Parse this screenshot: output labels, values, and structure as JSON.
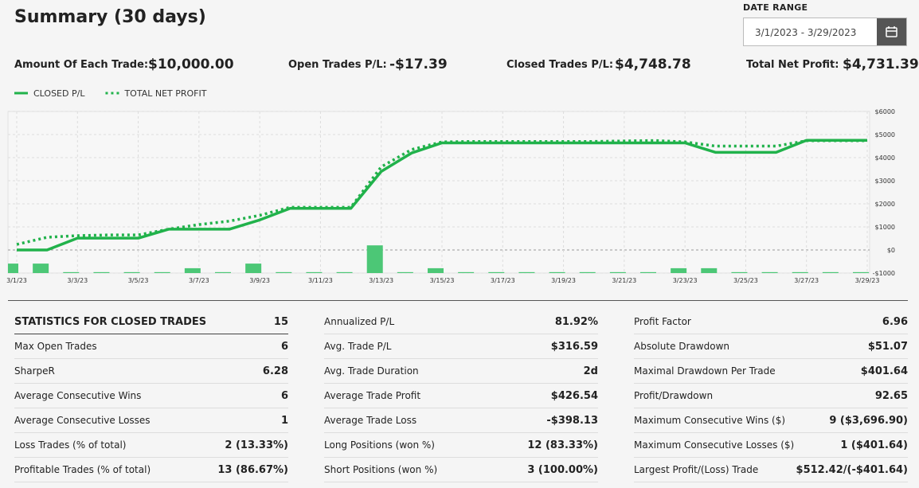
{
  "header": {
    "title": "Summary (30 days)",
    "date_range_label": "DATE RANGE",
    "date_range": "3/1/2023 - 3/29/2023"
  },
  "summary": [
    {
      "label": "Amount Of Each Trade:",
      "value": "$10,000.00"
    },
    {
      "label": "Open Trades P/L:",
      "value": "-$17.39"
    },
    {
      "label": "Closed Trades P/L:",
      "value": "$4,748.78"
    },
    {
      "label": "Total Net Profit:",
      "value": "$4,731.39"
    }
  ],
  "chart_data": {
    "type": "line",
    "categories": [
      "3/1/23",
      null,
      "3/3/23",
      null,
      "3/5/23",
      null,
      "3/7/23",
      null,
      "3/9/23",
      null,
      "3/11/23",
      null,
      "3/13/23",
      null,
      "3/15/23",
      null,
      "3/17/23",
      null,
      "3/19/23",
      null,
      "3/21/23",
      null,
      "3/23/23",
      null,
      "3/25/23",
      null,
      "3/27/23",
      null,
      "3/29/23"
    ],
    "series": [
      {
        "name": "CLOSED P/L",
        "color": "#21b24b",
        "style": "solid",
        "values": [
          0,
          0,
          512,
          512,
          512,
          900,
          900,
          900,
          1300,
          1800,
          1800,
          1800,
          3400,
          4200,
          4640,
          4640,
          4640,
          4640,
          4640,
          4640,
          4640,
          4640,
          4640,
          4230,
          4230,
          4230,
          4748,
          4748,
          4748
        ]
      },
      {
        "name": "TOTAL NET PROFIT",
        "color": "#21b24b",
        "style": "dotted",
        "values": [
          240,
          550,
          620,
          650,
          650,
          900,
          1100,
          1250,
          1500,
          1850,
          1850,
          1850,
          3600,
          4350,
          4680,
          4700,
          4700,
          4700,
          4700,
          4700,
          4720,
          4740,
          4680,
          4500,
          4500,
          4500,
          4731,
          4731,
          4731
        ]
      },
      {
        "type": "bar",
        "color": "#4cc776",
        "values": [
          -590,
          -590,
          -960,
          -960,
          -960,
          -960,
          -790,
          -960,
          -590,
          -960,
          -960,
          -960,
          200,
          -960,
          -790,
          -960,
          -960,
          -960,
          -960,
          -960,
          -960,
          -960,
          -790,
          -790,
          -960,
          -960,
          -960,
          -960,
          -960
        ]
      }
    ],
    "ylim": [
      -1000,
      6000
    ],
    "yticks": [
      {
        "value": -1000,
        "label": "-$1000"
      },
      {
        "value": 0,
        "label": "$0"
      },
      {
        "value": 1000,
        "label": "$1000"
      },
      {
        "value": 2000,
        "label": "$2000"
      },
      {
        "value": 3000,
        "label": "$3000"
      },
      {
        "value": 4000,
        "label": "$4000"
      },
      {
        "value": 5000,
        "label": "$5000"
      },
      {
        "value": 6000,
        "label": "$6000"
      }
    ],
    "grid": true
  },
  "statistics": [
    [
      {
        "label": "STATISTICS FOR CLOSED TRADES",
        "value": "15"
      },
      {
        "label": "Max Open Trades",
        "value": "6"
      },
      {
        "label": "SharpeR",
        "value": "6.28"
      },
      {
        "label": "Average Consecutive Wins",
        "value": "6"
      },
      {
        "label": "Average Consecutive Losses",
        "value": "1"
      },
      {
        "label": "Loss Trades (% of total)",
        "value": "2 (13.33%)"
      },
      {
        "label": "Profitable Trades (% of total)",
        "value": "13 (86.67%)"
      }
    ],
    [
      {
        "label": "Annualized P/L",
        "value": "81.92%"
      },
      {
        "label": "Avg. Trade P/L",
        "value": "$316.59"
      },
      {
        "label": "Avg. Trade Duration",
        "value": "2d"
      },
      {
        "label": "Average Trade Profit",
        "value": "$426.54"
      },
      {
        "label": "Average Trade Loss",
        "value": "-$398.13"
      },
      {
        "label": "Long Positions (won %)",
        "value": "12 (83.33%)"
      },
      {
        "label": "Short Positions (won %)",
        "value": "3 (100.00%)"
      }
    ],
    [
      {
        "label": "Profit Factor",
        "value": "6.96"
      },
      {
        "label": "Absolute Drawdown",
        "value": "$51.07"
      },
      {
        "label": "Maximal Drawdown Per Trade",
        "value": "$401.64"
      },
      {
        "label": "Profit/Drawdown",
        "value": "92.65"
      },
      {
        "label": "Maximum Consecutive Wins ($)",
        "value": "9 ($3,696.90)"
      },
      {
        "label": "Maximum Consecutive Losses ($)",
        "value": "1 ($401.64)"
      },
      {
        "label": "Largest Profit/(Loss) Trade",
        "value": "$512.42/(-$401.64)"
      }
    ]
  ]
}
